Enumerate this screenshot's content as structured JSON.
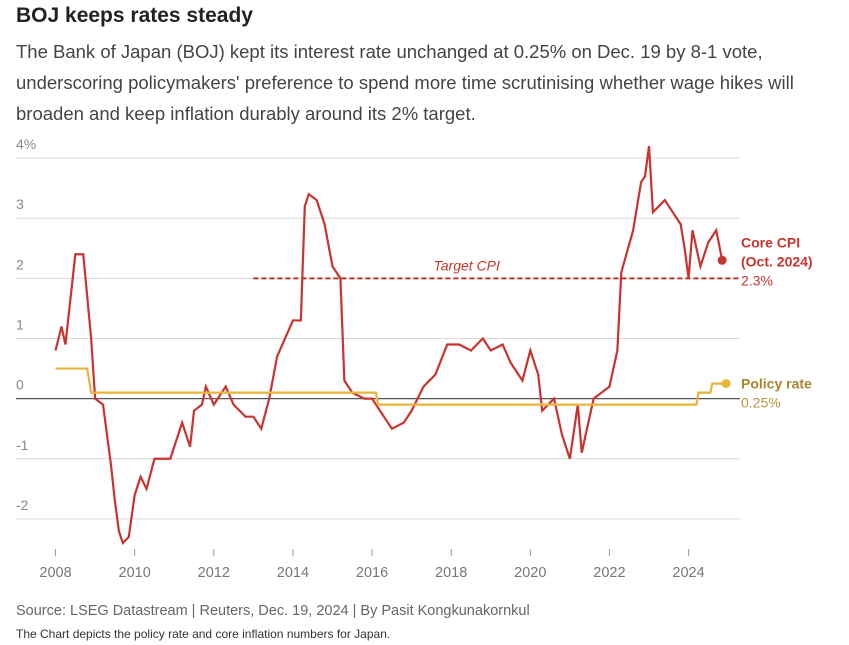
{
  "chart_data": {
    "type": "line",
    "title": "BOJ keeps rates steady",
    "subtitle": "The Bank of Japan (BOJ) kept its interest rate unchanged at 0.25% on Dec. 19 by 8-1 vote, underscoring policymakers' preference to spend more time scrutinising whether wage hikes will broaden and keep inflation durably around its 2% target.",
    "source": "Source: LSEG Datastream | Reuters, Dec. 19, 2024 | By Pasit Kongkunakornkul",
    "note": "The Chart depicts the policy rate and core inflation numbers for Japan.",
    "xlim": [
      2007,
      2025.3
    ],
    "xticks": [
      2008,
      2010,
      2012,
      2014,
      2016,
      2018,
      2020,
      2022,
      2024
    ],
    "ylim": [
      -2.5,
      4.3
    ],
    "yticks": [
      {
        "value": 4,
        "label": "4%"
      },
      3,
      2,
      1,
      0,
      -1,
      -2
    ],
    "grid": true,
    "reference_line": {
      "label": "Target CPI",
      "value": 2,
      "x_start": 2013,
      "color": "#c0392b"
    },
    "series": [
      {
        "name": "Core CPI",
        "end_label": "(Oct. 2024)",
        "end_value_label": "2.3%",
        "color": "#c8342f",
        "x": [
          2008.0,
          2008.15,
          2008.25,
          2008.35,
          2008.5,
          2008.7,
          2008.9,
          2009.0,
          2009.2,
          2009.4,
          2009.5,
          2009.6,
          2009.7,
          2009.85,
          2010.0,
          2010.15,
          2010.3,
          2010.5,
          2010.9,
          2011.0,
          2011.2,
          2011.4,
          2011.5,
          2011.7,
          2011.8,
          2012.0,
          2012.3,
          2012.5,
          2012.8,
          2013.0,
          2013.2,
          2013.4,
          2013.6,
          2013.8,
          2014.0,
          2014.2,
          2014.3,
          2014.4,
          2014.6,
          2014.8,
          2015.0,
          2015.2,
          2015.3,
          2015.5,
          2015.8,
          2016.0,
          2016.3,
          2016.5,
          2016.8,
          2017.0,
          2017.3,
          2017.6,
          2017.9,
          2018.2,
          2018.5,
          2018.8,
          2019.0,
          2019.3,
          2019.5,
          2019.8,
          2020.0,
          2020.2,
          2020.3,
          2020.6,
          2020.8,
          2021.0,
          2021.2,
          2021.3,
          2021.6,
          2021.8,
          2022.0,
          2022.2,
          2022.3,
          2022.6,
          2022.8,
          2022.9,
          2023.0,
          2023.1,
          2023.4,
          2023.6,
          2023.8,
          2023.9,
          2024.0,
          2024.1,
          2024.3,
          2024.5,
          2024.7,
          2024.85
        ],
        "values": [
          0.8,
          1.2,
          0.9,
          1.5,
          2.4,
          2.4,
          1.0,
          0.0,
          -0.1,
          -1.1,
          -1.7,
          -2.2,
          -2.4,
          -2.3,
          -1.6,
          -1.3,
          -1.5,
          -1.0,
          -1.0,
          -0.8,
          -0.4,
          -0.8,
          -0.2,
          -0.1,
          0.2,
          -0.1,
          0.2,
          -0.1,
          -0.3,
          -0.3,
          -0.5,
          0.0,
          0.7,
          1.0,
          1.3,
          1.3,
          3.2,
          3.4,
          3.3,
          2.9,
          2.2,
          2.0,
          0.3,
          0.1,
          0.0,
          0.0,
          -0.3,
          -0.5,
          -0.4,
          -0.2,
          0.2,
          0.4,
          0.9,
          0.9,
          0.8,
          1.0,
          0.8,
          0.9,
          0.6,
          0.3,
          0.8,
          0.4,
          -0.2,
          0.0,
          -0.6,
          -1.0,
          -0.1,
          -0.9,
          0.0,
          0.1,
          0.2,
          0.8,
          2.1,
          2.8,
          3.6,
          3.7,
          4.2,
          3.1,
          3.3,
          3.1,
          2.9,
          2.5,
          2.0,
          2.8,
          2.2,
          2.6,
          2.8,
          2.3
        ]
      },
      {
        "name": "Policy rate",
        "end_value_label": "0.25%",
        "color": "#e8b53a",
        "x": [
          2008.0,
          2008.8,
          2008.9,
          2016.1,
          2016.15,
          2024.2,
          2024.25,
          2024.55,
          2024.6,
          2024.95
        ],
        "values": [
          0.5,
          0.5,
          0.1,
          0.1,
          -0.1,
          -0.1,
          0.1,
          0.1,
          0.25,
          0.25
        ]
      }
    ]
  }
}
